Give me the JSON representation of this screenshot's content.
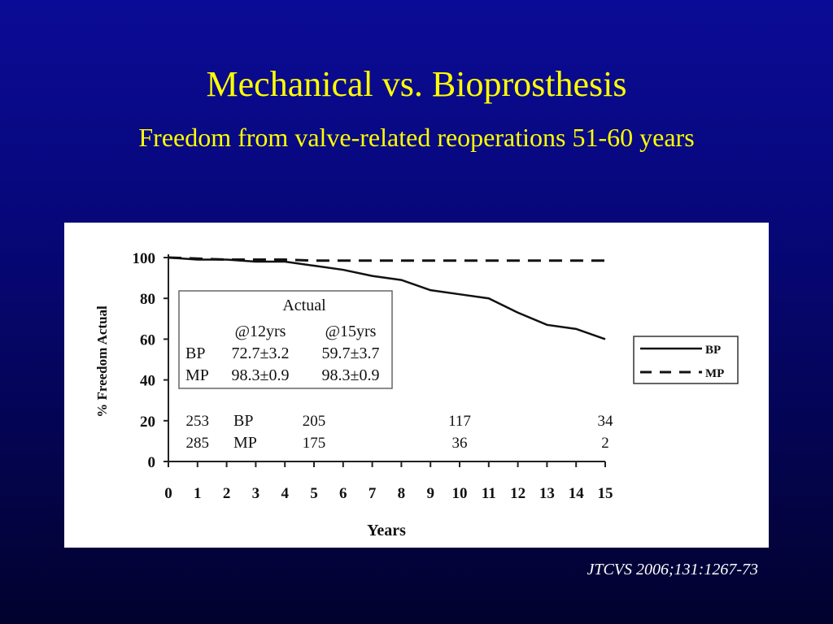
{
  "slide": {
    "title": "Mechanical vs. Bioprosthesis",
    "subtitle": "Freedom from valve-related reoperations 51-60 years",
    "citation": "JTCVS 2006;131:1267-73",
    "background_color": "#07077a",
    "title_color": "#ffff00"
  },
  "chart_data": {
    "type": "line",
    "xlabel": "Years",
    "ylabel": "% Freedom Actual",
    "xlim": [
      0,
      15
    ],
    "ylim": [
      0,
      100
    ],
    "x_ticks": [
      0,
      1,
      2,
      3,
      4,
      5,
      6,
      7,
      8,
      9,
      10,
      11,
      12,
      13,
      14,
      15
    ],
    "y_ticks": [
      0,
      20,
      40,
      60,
      80,
      100
    ],
    "grid": false,
    "legend_position": "right",
    "series": [
      {
        "name": "BP",
        "style": "solid",
        "x": [
          0,
          1,
          2,
          3,
          4,
          5,
          6,
          7,
          8,
          9,
          10,
          11,
          12,
          13,
          14,
          15
        ],
        "y": [
          100,
          99,
          99,
          98,
          98,
          96,
          94,
          91,
          89,
          84,
          82,
          80,
          73,
          67,
          65,
          60
        ]
      },
      {
        "name": "MP",
        "style": "dashed",
        "x": [
          0,
          1,
          2,
          3,
          4,
          5,
          6,
          7,
          8,
          9,
          10,
          11,
          12,
          13,
          14,
          15
        ],
        "y": [
          100,
          99.5,
          99,
          99,
          99,
          98.5,
          98.5,
          98.5,
          98.5,
          98.5,
          98.5,
          98.5,
          98.5,
          98.5,
          98.5,
          98.5
        ]
      }
    ],
    "inset_table": {
      "title": "Actual",
      "headers": [
        "",
        "@12yrs",
        "@15yrs"
      ],
      "rows": [
        [
          "BP",
          "72.7±3.2",
          "59.7±3.7"
        ],
        [
          "MP",
          "98.3±0.9",
          "98.3±0.9"
        ]
      ]
    },
    "at_risk": {
      "labels": [
        "BP",
        "MP"
      ],
      "columns": [
        {
          "year": 1,
          "bp": "253",
          "mp": "285"
        },
        {
          "year": 5,
          "bp": "205",
          "mp": "175"
        },
        {
          "year": 10,
          "bp": "117",
          "mp": "36"
        },
        {
          "year": 15,
          "bp": "34",
          "mp": "2"
        }
      ]
    }
  }
}
